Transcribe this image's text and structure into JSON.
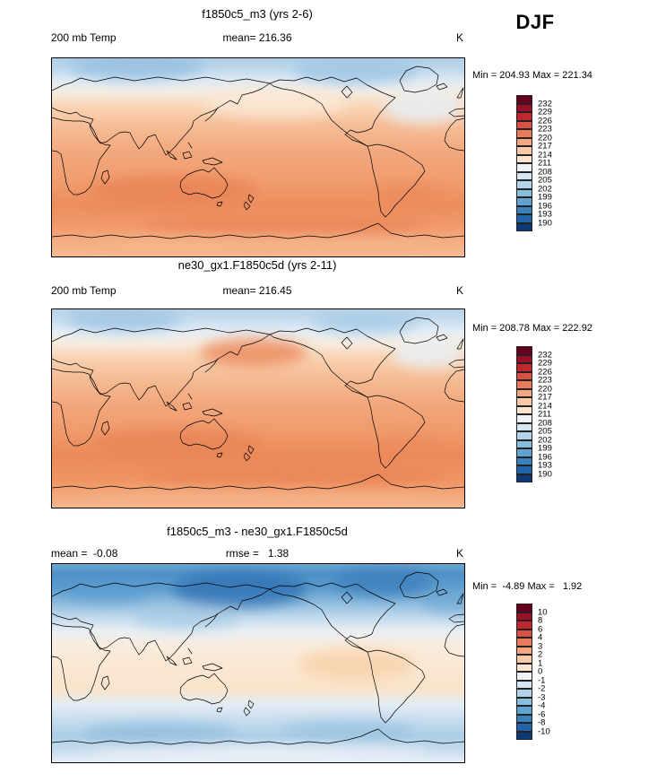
{
  "figure": {
    "season": "DJF"
  },
  "palette_top_to_bottom": [
    "#67001f",
    "#9b1027",
    "#c0282f",
    "#d65244",
    "#e97b5c",
    "#f4a582",
    "#f9c9a8",
    "#fde5d2",
    "#eff3f8",
    "#d6e6f2",
    "#b3d3e8",
    "#8abedd",
    "#60a3d0",
    "#3b82bd",
    "#2263a8",
    "#0b3a76"
  ],
  "panels": [
    {
      "title": "f1850c5_m3 (yrs 2-6)",
      "left_label": "200 mb Temp",
      "center_label": "mean= 216.36",
      "unit": "K",
      "minmax": "Min = 204.93 Max = 221.34",
      "colorbar_labels": [
        "232",
        "229",
        "226",
        "223",
        "220",
        "217",
        "214",
        "211",
        "208",
        "205",
        "202",
        "199",
        "196",
        "193",
        "190"
      ]
    },
    {
      "title": "ne30_gx1.F1850c5d (yrs 2-11)",
      "left_label": "200 mb Temp",
      "center_label": "mean= 216.45",
      "unit": "K",
      "minmax": "Min = 208.78 Max = 222.92",
      "colorbar_labels": [
        "232",
        "229",
        "226",
        "223",
        "220",
        "217",
        "214",
        "211",
        "208",
        "205",
        "202",
        "199",
        "196",
        "193",
        "190"
      ]
    },
    {
      "title": "f1850c5_m3 - ne30_gx1.F1850c5d",
      "left_label": "mean =  -0.08",
      "center_label": "rmse =   1.38",
      "unit": "K",
      "minmax": "Min =  -4.89 Max =   1.92",
      "colorbar_labels": [
        "10",
        "8",
        "6",
        "4",
        "3",
        "2",
        "1",
        "0",
        "-1",
        "-2",
        "-3",
        "-4",
        "-6",
        "-8",
        "-10"
      ]
    }
  ],
  "chart_data": [
    {
      "type": "heatmap",
      "subtype": "filled-contour global map, equirectangular 0-360E / 90S-90N",
      "title": "f1850c5_m3 (yrs 2-6)",
      "variable": "200 mb Temp",
      "season": "DJF",
      "units": "K",
      "stats": {
        "mean": 216.36,
        "min": 204.93,
        "max": 221.34
      },
      "contour_levels": [
        190,
        193,
        196,
        199,
        202,
        205,
        208,
        211,
        214,
        217,
        220,
        223,
        226,
        229,
        232
      ],
      "legend_position": "right",
      "grid": false,
      "approx_zonal_values": {
        "lat": [
          90,
          60,
          30,
          0,
          -30,
          -60,
          -90
        ],
        "value": [
          206,
          211,
          215,
          218,
          221,
          220,
          217
        ]
      },
      "notable_features": [
        "light blue (205-211 K) over Arctic high latitudes",
        "pale transition band in northern midlatitudes",
        "orange 217-220 K through tropics",
        "deepest orange band ~221-223 K in southern subtropics near Australia and southern midlatitudes"
      ]
    },
    {
      "type": "heatmap",
      "subtype": "filled-contour global map, equirectangular 0-360E / 90S-90N",
      "title": "ne30_gx1.F1850c5d (yrs 2-11)",
      "variable": "200 mb Temp",
      "season": "DJF",
      "units": "K",
      "stats": {
        "mean": 216.45,
        "min": 208.78,
        "max": 222.92
      },
      "contour_levels": [
        190,
        193,
        196,
        199,
        202,
        205,
        208,
        211,
        214,
        217,
        220,
        223,
        226,
        229,
        232
      ],
      "legend_position": "right",
      "grid": false,
      "approx_zonal_values": {
        "lat": [
          90,
          60,
          30,
          0,
          -30,
          -60,
          -90
        ],
        "value": [
          208,
          212,
          216,
          218,
          221,
          220,
          218
        ]
      },
      "notable_features": [
        "light blue Arctic band",
        "warm orange patch in North Pacific",
        "orange tropics ~218-220 K",
        "strong orange band 221-223 K across southern subtropics and midlatitudes"
      ]
    },
    {
      "type": "heatmap",
      "subtype": "filled-contour global difference map, equirectangular 0-360E / 90S-90N",
      "title": "f1850c5_m3 - ne30_gx1.F1850c5d",
      "variable": "200 mb Temp difference",
      "season": "DJF",
      "units": "K",
      "stats": {
        "mean": -0.08,
        "rmse": 1.38,
        "min": -4.89,
        "max": 1.92
      },
      "contour_levels": [
        -10,
        -8,
        -6,
        -4,
        -3,
        -2,
        -1,
        0,
        1,
        2,
        3,
        4,
        6,
        8,
        10
      ],
      "legend_position": "right",
      "grid": false,
      "approx_zonal_values": {
        "lat": [
          90,
          60,
          30,
          0,
          -30,
          -60,
          -90
        ],
        "value": [
          -2.5,
          -3.5,
          -0.5,
          1.0,
          0.5,
          -1.5,
          -0.5
        ]
      },
      "notable_features": [
        "broad negative band (-2 to -4 K) across northern high latitudes, deepest over North Pacific and northeastern Canada/North Atlantic",
        "weak positive (+1 to +2 K) through tropics and subtropics",
        "light negative band (-1 to -2 K) around 60S",
        "near-zero along Antarctica"
      ]
    }
  ]
}
